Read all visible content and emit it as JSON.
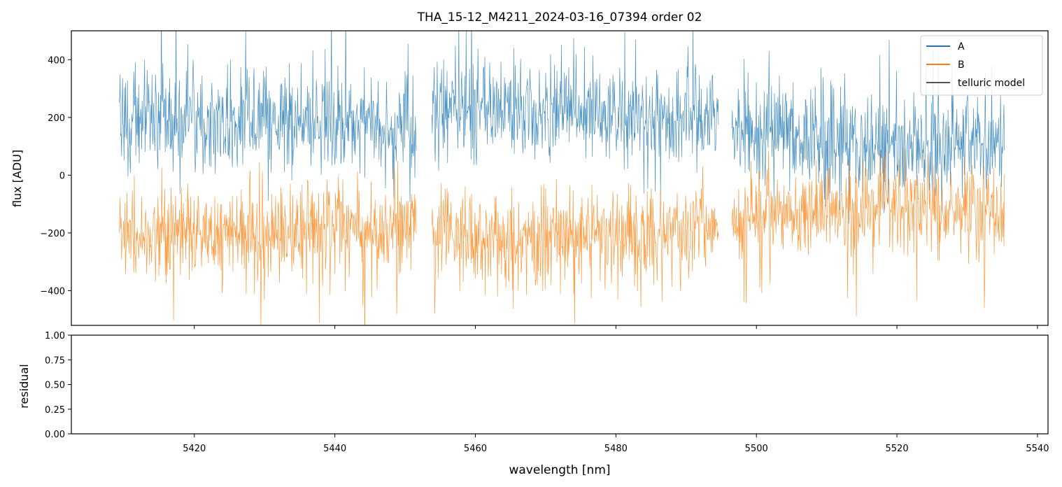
{
  "figure": {
    "title": "THA_15-12_M4211_2024-03-16_07394  order 02"
  },
  "colors": {
    "A": "#1f77b4",
    "B": "#ff7f0e",
    "telluric": "#555555"
  },
  "chart_data": [
    {
      "type": "line",
      "title": "THA_15-12_M4211_2024-03-16_07394  order 02",
      "xlabel": "",
      "ylabel": "flux [ADU]",
      "xlim": [
        5402.5,
        5541.5
      ],
      "ylim": [
        -520,
        500
      ],
      "yticks": [
        -400,
        -200,
        0,
        200,
        400
      ],
      "yticklabels": [
        "−400",
        "−200",
        "0",
        "200",
        "400"
      ],
      "xticks": [
        5420,
        5440,
        5460,
        5480,
        5500,
        5520,
        5540
      ],
      "show_xticklabels": false,
      "grid": false,
      "legend_placement": "top-right",
      "segments": [
        [
          5409.3,
          5451.6
        ],
        [
          5453.8,
          5494.6
        ],
        [
          5496.5,
          5535.3
        ]
      ],
      "series": [
        {
          "name": "A",
          "color": "#1f77b4",
          "noise_std": 90,
          "trend": {
            "x": [
              5409.3,
              5420,
              5430,
              5440,
              5451.6,
              5453.8,
              5465,
              5480,
              5494.6,
              5496.5,
              5510,
              5520,
              5535.3
            ],
            "y": [
              180,
              190,
              185,
              170,
              150,
              230,
              225,
              205,
              180,
              150,
              120,
              100,
              85
            ]
          }
        },
        {
          "name": "B",
          "color": "#ff7f0e",
          "noise_std": 80,
          "trend": {
            "x": [
              5409.3,
              5420,
              5430,
              5440,
              5451.6,
              5453.8,
              5465,
              5480,
              5494.6,
              5496.5,
              5510,
              5520,
              5535.3
            ],
            "y": [
              -200,
              -210,
              -195,
              -185,
              -170,
              -200,
              -215,
              -200,
              -175,
              -150,
              -125,
              -110,
              -95
            ]
          }
        },
        {
          "name": "telluric model",
          "color": "#555555",
          "x": [],
          "y": []
        }
      ]
    },
    {
      "type": "line",
      "xlabel": "wavelength [nm]",
      "ylabel": "residual",
      "xlim": [
        5402.5,
        5541.5
      ],
      "ylim": [
        0,
        1
      ],
      "yticks": [
        0,
        0.25,
        0.5,
        0.75,
        1
      ],
      "yticklabels": [
        "0.00",
        "0.25",
        "0.50",
        "0.75",
        "1.00"
      ],
      "xticks": [
        5420,
        5440,
        5460,
        5480,
        5500,
        5520,
        5540
      ],
      "xticklabels": [
        "5420",
        "5440",
        "5460",
        "5480",
        "5500",
        "5520",
        "5540"
      ],
      "grid": false,
      "series": []
    }
  ]
}
